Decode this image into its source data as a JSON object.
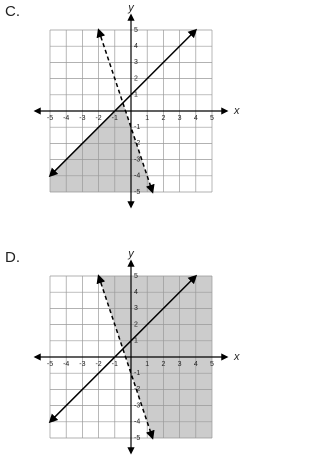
{
  "chart_data": [
    {
      "type": "line",
      "label": "C.",
      "xlabel": "x",
      "ylabel": "y",
      "xlim": [
        -5,
        5
      ],
      "ylim": [
        -5,
        5
      ],
      "xticks": [
        -5,
        -4,
        -3,
        -2,
        -1,
        1,
        2,
        3,
        4,
        5
      ],
      "yticks": [
        -5,
        -4,
        -3,
        -2,
        -1,
        1,
        2,
        3,
        4,
        5
      ],
      "grid": true,
      "shade_color": "#cccccc",
      "series": [
        {
          "color": "#000000",
          "style": "solid",
          "shade": "below",
          "x": [
            -5,
            4
          ],
          "values": [
            -4,
            5
          ]
        },
        {
          "color": "#000000",
          "style": "dashed",
          "shade": "below",
          "x": [
            -2,
            1.33
          ],
          "values": [
            5,
            -5
          ]
        }
      ]
    },
    {
      "type": "line",
      "label": "D.",
      "xlabel": "x",
      "ylabel": "y",
      "xlim": [
        -5,
        5
      ],
      "ylim": [
        -5,
        5
      ],
      "xticks": [
        -5,
        -4,
        -3,
        -2,
        -1,
        1,
        2,
        3,
        4,
        5
      ],
      "yticks": [
        -5,
        -4,
        -3,
        -2,
        -1,
        1,
        2,
        3,
        4,
        5
      ],
      "grid": true,
      "shade_color": "#cccccc",
      "series": [
        {
          "color": "#000000",
          "style": "solid",
          "shade": null,
          "x": [
            -5,
            4
          ],
          "values": [
            -4,
            5
          ]
        },
        {
          "color": "#000000",
          "style": "dashed",
          "shade": "above",
          "x": [
            -2,
            1.33
          ],
          "values": [
            5,
            -5
          ]
        }
      ]
    }
  ]
}
